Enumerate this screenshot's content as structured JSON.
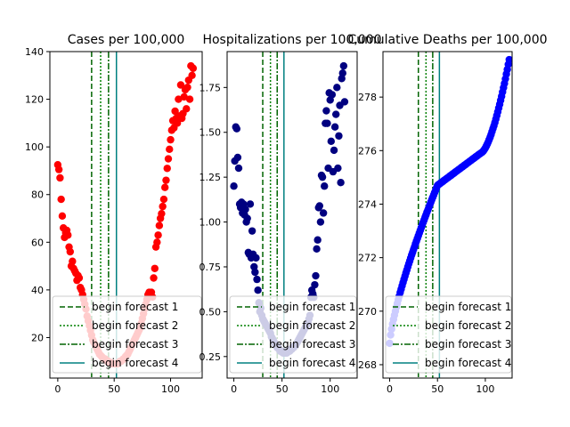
{
  "chart_data": [
    {
      "type": "scatter",
      "title": "Cases per 100,000",
      "xlabel": "",
      "ylabel": "",
      "xlim": [
        -7,
        128
      ],
      "ylim": [
        3,
        140
      ],
      "xticks": [
        0,
        50,
        100
      ],
      "yticks": [
        20,
        40,
        60,
        80,
        100,
        120,
        140
      ],
      "ytick_format": 0,
      "marker_color": "#ff0000",
      "forecast_lines": [
        30,
        38,
        45,
        52
      ],
      "legend_loc": "lower-left",
      "points": [
        [
          0,
          92.5
        ],
        [
          1,
          90.5
        ],
        [
          2,
          87
        ],
        [
          3,
          78
        ],
        [
          4,
          71
        ],
        [
          5,
          66
        ],
        [
          6,
          62
        ],
        [
          7,
          64
        ],
        [
          8,
          65
        ],
        [
          9,
          63
        ],
        [
          10,
          58
        ],
        [
          11,
          56
        ],
        [
          12,
          50
        ],
        [
          13,
          52
        ],
        [
          14,
          49
        ],
        [
          15,
          48
        ],
        [
          16,
          47
        ],
        [
          17,
          44
        ],
        [
          18,
          46
        ],
        [
          19,
          45
        ],
        [
          20,
          41
        ],
        [
          21,
          40
        ],
        [
          22,
          38
        ],
        [
          23,
          36
        ],
        [
          24,
          34
        ],
        [
          25,
          32
        ],
        [
          26,
          29
        ],
        [
          27,
          27
        ],
        [
          28,
          25
        ],
        [
          29,
          23
        ],
        [
          30,
          21
        ],
        [
          31,
          19
        ],
        [
          32,
          18
        ],
        [
          33,
          17
        ],
        [
          34,
          16
        ],
        [
          35,
          15
        ],
        [
          36,
          14
        ],
        [
          37,
          13
        ],
        [
          38,
          12.5
        ],
        [
          39,
          12
        ],
        [
          40,
          11.5
        ],
        [
          41,
          11
        ],
        [
          42,
          11
        ],
        [
          43,
          10.5
        ],
        [
          44,
          10
        ],
        [
          45,
          10
        ],
        [
          46,
          9.5
        ],
        [
          47,
          9.5
        ],
        [
          48,
          9
        ],
        [
          49,
          9
        ],
        [
          50,
          9
        ],
        [
          51,
          9
        ],
        [
          52,
          9
        ],
        [
          53,
          9
        ],
        [
          54,
          9.5
        ],
        [
          55,
          10
        ],
        [
          56,
          10
        ],
        [
          57,
          10.5
        ],
        [
          58,
          11
        ],
        [
          59,
          11
        ],
        [
          60,
          12
        ],
        [
          61,
          12.5
        ],
        [
          62,
          13
        ],
        [
          63,
          14
        ],
        [
          64,
          15
        ],
        [
          65,
          16
        ],
        [
          66,
          17
        ],
        [
          67,
          18
        ],
        [
          68,
          19
        ],
        [
          69,
          20
        ],
        [
          70,
          21
        ],
        [
          71,
          22
        ],
        [
          72,
          23
        ],
        [
          73,
          24
        ],
        [
          74,
          26
        ],
        [
          75,
          28
        ],
        [
          76,
          30
        ],
        [
          77,
          32
        ],
        [
          78,
          34
        ],
        [
          79,
          36
        ],
        [
          80,
          38
        ],
        [
          81,
          39
        ],
        [
          82,
          38
        ],
        [
          83,
          39
        ],
        [
          84,
          37
        ],
        [
          85,
          45
        ],
        [
          86,
          49
        ],
        [
          87,
          58
        ],
        [
          88,
          60
        ],
        [
          89,
          63
        ],
        [
          90,
          67
        ],
        [
          91,
          70
        ],
        [
          92,
          72
        ],
        [
          93,
          75
        ],
        [
          94,
          78
        ],
        [
          95,
          83
        ],
        [
          96,
          86
        ],
        [
          97,
          91
        ],
        [
          98,
          95
        ],
        [
          99,
          99
        ],
        [
          100,
          103
        ],
        [
          101,
          107
        ],
        [
          102,
          111
        ],
        [
          103,
          108
        ],
        [
          104,
          115
        ],
        [
          105,
          112
        ],
        [
          106,
          110
        ],
        [
          107,
          120
        ],
        [
          108,
          113
        ],
        [
          109,
          126
        ],
        [
          110,
          112
        ],
        [
          111,
          114
        ],
        [
          112,
          121
        ],
        [
          113,
          124
        ],
        [
          114,
          116
        ],
        [
          115,
          125
        ],
        [
          116,
          128
        ],
        [
          117,
          120
        ],
        [
          118,
          134
        ],
        [
          119,
          130
        ],
        [
          120,
          133
        ]
      ],
      "legend": [
        "begin forecast 1",
        "begin forecast 2",
        "begin forecast 3",
        "begin forecast 4"
      ]
    },
    {
      "type": "scatter",
      "title": "Hospitalizations per 100,000",
      "xlabel": "",
      "ylabel": "",
      "xlim": [
        -7,
        128
      ],
      "ylim": [
        0.13,
        1.95
      ],
      "xticks": [
        0,
        50,
        100
      ],
      "yticks": [
        0.25,
        0.5,
        0.75,
        1.0,
        1.25,
        1.5,
        1.75
      ],
      "ytick_format": 2,
      "marker_color": "#000080",
      "forecast_lines": [
        30,
        38,
        45,
        52
      ],
      "legend_loc": "lower-left",
      "points": [
        [
          0,
          1.2
        ],
        [
          1,
          1.34
        ],
        [
          2,
          1.53
        ],
        [
          3,
          1.52
        ],
        [
          4,
          1.36
        ],
        [
          5,
          1.3
        ],
        [
          6,
          1.1
        ],
        [
          7,
          1.08
        ],
        [
          8,
          1.11
        ],
        [
          9,
          1.05
        ],
        [
          10,
          1.1
        ],
        [
          11,
          1.04
        ],
        [
          12,
          1.07
        ],
        [
          13,
          1.0
        ],
        [
          14,
          1.02
        ],
        [
          15,
          0.83
        ],
        [
          16,
          0.82
        ],
        [
          17,
          1.1
        ],
        [
          18,
          0.8
        ],
        [
          19,
          0.95
        ],
        [
          20,
          0.82
        ],
        [
          21,
          0.75
        ],
        [
          22,
          0.72
        ],
        [
          23,
          0.8
        ],
        [
          24,
          0.68
        ],
        [
          25,
          0.62
        ],
        [
          26,
          0.55
        ],
        [
          27,
          0.5
        ],
        [
          28,
          0.52
        ],
        [
          29,
          0.48
        ],
        [
          30,
          0.46
        ],
        [
          31,
          0.45
        ],
        [
          32,
          0.44
        ],
        [
          33,
          0.43
        ],
        [
          34,
          0.42
        ],
        [
          35,
          0.41
        ],
        [
          36,
          0.4
        ],
        [
          37,
          0.39
        ],
        [
          38,
          0.38
        ],
        [
          39,
          0.36
        ],
        [
          40,
          0.35
        ],
        [
          41,
          0.34
        ],
        [
          42,
          0.33
        ],
        [
          43,
          0.32
        ],
        [
          44,
          0.31
        ],
        [
          45,
          0.3
        ],
        [
          46,
          0.3
        ],
        [
          47,
          0.29
        ],
        [
          48,
          0.28
        ],
        [
          49,
          0.28
        ],
        [
          50,
          0.28
        ],
        [
          51,
          0.27
        ],
        [
          52,
          0.27
        ],
        [
          53,
          0.27
        ],
        [
          54,
          0.27
        ],
        [
          55,
          0.27
        ],
        [
          56,
          0.28
        ],
        [
          57,
          0.28
        ],
        [
          58,
          0.28
        ],
        [
          59,
          0.29
        ],
        [
          60,
          0.29
        ],
        [
          61,
          0.3
        ],
        [
          62,
          0.3
        ],
        [
          63,
          0.31
        ],
        [
          64,
          0.31
        ],
        [
          65,
          0.32
        ],
        [
          66,
          0.33
        ],
        [
          67,
          0.34
        ],
        [
          68,
          0.35
        ],
        [
          69,
          0.36
        ],
        [
          70,
          0.37
        ],
        [
          71,
          0.38
        ],
        [
          72,
          0.39
        ],
        [
          73,
          0.4
        ],
        [
          74,
          0.41
        ],
        [
          75,
          0.42
        ],
        [
          76,
          0.43
        ],
        [
          77,
          0.44
        ],
        [
          78,
          0.46
        ],
        [
          79,
          0.48
        ],
        [
          80,
          0.58
        ],
        [
          81,
          0.62
        ],
        [
          82,
          0.6
        ],
        [
          83,
          0.58
        ],
        [
          84,
          0.65
        ],
        [
          85,
          0.7
        ],
        [
          86,
          0.85
        ],
        [
          87,
          0.9
        ],
        [
          88,
          1.08
        ],
        [
          89,
          1.09
        ],
        [
          90,
          1.0
        ],
        [
          91,
          1.26
        ],
        [
          92,
          1.25
        ],
        [
          93,
          1.05
        ],
        [
          94,
          1.2
        ],
        [
          95,
          1.55
        ],
        [
          96,
          1.62
        ],
        [
          97,
          1.55
        ],
        [
          98,
          1.3
        ],
        [
          99,
          1.72
        ],
        [
          100,
          1.68
        ],
        [
          101,
          1.45
        ],
        [
          102,
          1.71
        ],
        [
          103,
          1.28
        ],
        [
          104,
          1.4
        ],
        [
          105,
          1.53
        ],
        [
          106,
          1.6
        ],
        [
          107,
          1.75
        ],
        [
          108,
          1.3
        ],
        [
          109,
          1.48
        ],
        [
          110,
          1.65
        ],
        [
          111,
          1.22
        ],
        [
          112,
          1.8
        ],
        [
          113,
          1.83
        ],
        [
          114,
          1.87
        ],
        [
          115,
          1.67
        ]
      ],
      "legend": [
        "begin forecast 1",
        "begin forecast 2",
        "begin forecast 3",
        "begin forecast 4"
      ]
    },
    {
      "type": "scatter",
      "title": "Cumulative Deaths per 100,000",
      "xlabel": "",
      "ylabel": "",
      "xlim": [
        -7,
        128
      ],
      "ylim": [
        267.5,
        279.7
      ],
      "xticks": [
        0,
        50,
        100
      ],
      "yticks": [
        268,
        270,
        272,
        274,
        276,
        278
      ],
      "ytick_format": 0,
      "marker_color": "#0000ff",
      "forecast_lines": [
        30,
        38,
        45,
        52
      ],
      "legend_loc": "lower-left",
      "points_model": "cumulative",
      "legend": [
        "begin forecast 1",
        "begin forecast 2",
        "begin forecast 3",
        "begin forecast 4"
      ]
    }
  ],
  "legend_styles": [
    {
      "color": "#006400",
      "dash": "6,3"
    },
    {
      "color": "#008000",
      "dash": "2,2"
    },
    {
      "color": "#006400",
      "dash": "7,2,2,2"
    },
    {
      "color": "#008080",
      "dash": ""
    }
  ]
}
